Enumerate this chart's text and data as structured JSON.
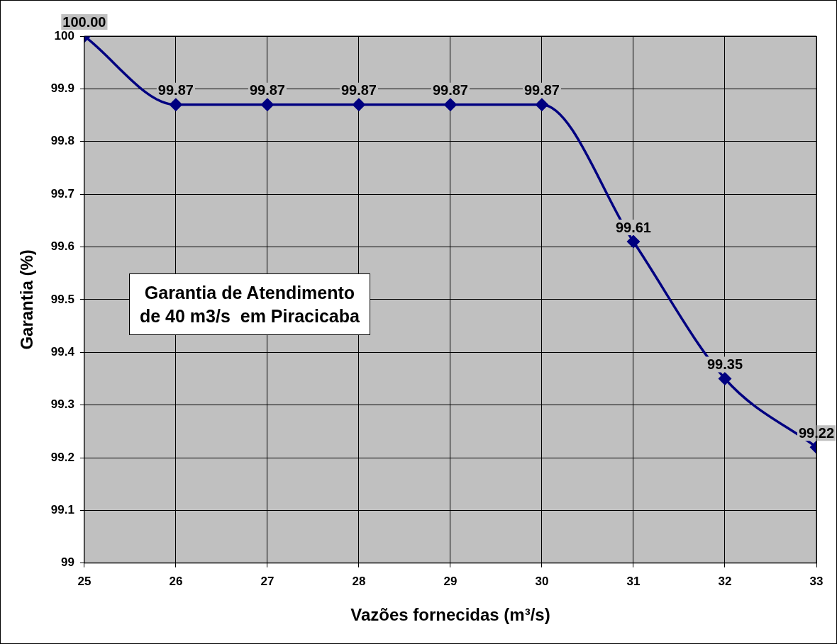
{
  "chart_data": {
    "type": "line",
    "xlabel": "Vazões fornecidas (m³/s)",
    "ylabel": "Garantia (%)",
    "annotations": [
      "Garantia de Atendimento\nde 40 m3/s  em Piracicaba"
    ],
    "x": [
      25,
      26,
      27,
      28,
      29,
      30,
      31,
      32,
      33
    ],
    "series": [
      {
        "color": "#000080",
        "values": [
          100.0,
          99.87,
          99.87,
          99.87,
          99.87,
          99.87,
          99.61,
          99.35,
          99.22
        ],
        "value_labels": [
          "100.00",
          "99.87",
          "99.87",
          "99.87",
          "99.87",
          "99.87",
          "99.61",
          "99.35",
          "99.22"
        ]
      }
    ],
    "xlim": [
      25,
      33
    ],
    "xticks": [
      25,
      26,
      27,
      28,
      29,
      30,
      31,
      32,
      33
    ],
    "ylim": [
      99,
      100
    ],
    "yticks": [
      99,
      99.1,
      99.2,
      99.3,
      99.4,
      99.5,
      99.6,
      99.7,
      99.8,
      99.9,
      100
    ],
    "grid": true,
    "marker": "diamond",
    "line_style": "solid"
  }
}
